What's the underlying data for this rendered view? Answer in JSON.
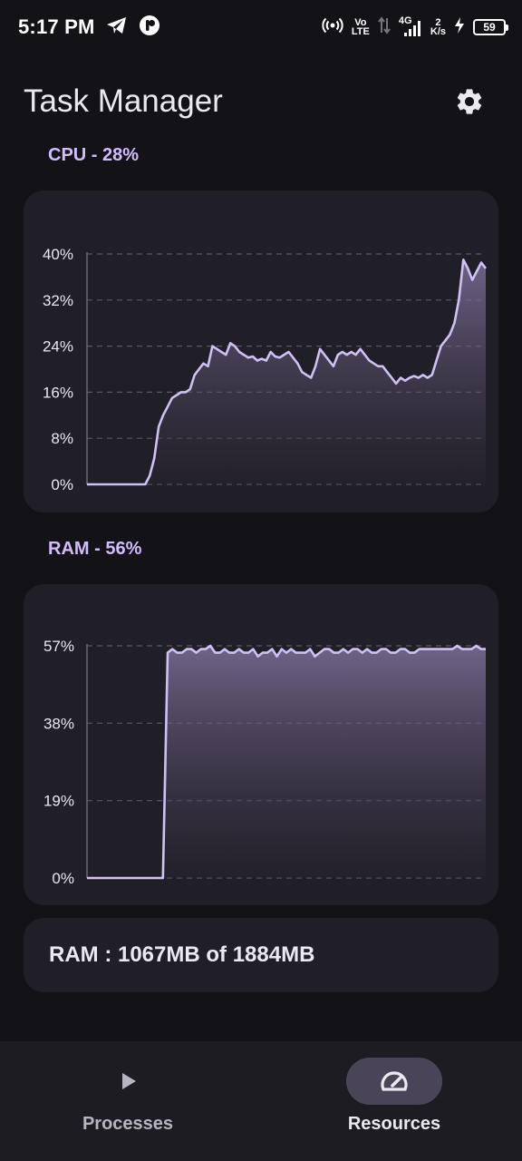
{
  "status_bar": {
    "time": "5:17 PM",
    "icons": [
      "telegram-icon",
      "notification-app-icon",
      "hotspot-icon",
      "volte-icon",
      "data-arrows-icon",
      "signal-4g-icon",
      "speed-indicator",
      "charging-icon",
      "battery-icon"
    ],
    "volte_line1": "Vo",
    "volte_line2": "LTE",
    "network_type": "4G",
    "speed_value": "2",
    "speed_unit": "K/s",
    "battery_level": "59"
  },
  "header": {
    "title": "Task Manager",
    "settings_icon": "gear-icon"
  },
  "cpu": {
    "label": "CPU - 28%"
  },
  "ram": {
    "label": "RAM - 56%",
    "summary": "RAM : 1067MB of 1884MB"
  },
  "colors": {
    "background": "#131217",
    "card": "#201e26",
    "accent_label": "#d2bcff",
    "line": "#cfc0f5",
    "nav_active_pill": "#4a4459"
  },
  "chart_data": [
    {
      "type": "area",
      "title": "CPU - 28%",
      "ylim": [
        0,
        40
      ],
      "yticks": [
        "0%",
        "8%",
        "16%",
        "24%",
        "32%",
        "40%"
      ],
      "ytick_values": [
        0,
        8,
        16,
        24,
        32,
        40
      ],
      "grid": true,
      "values": [
        0,
        0,
        0,
        0,
        0,
        0,
        0,
        0,
        0,
        0,
        0,
        0,
        0,
        0,
        1.5,
        4.5,
        10,
        12,
        13.5,
        15,
        15.5,
        16,
        16,
        16.5,
        19,
        20,
        21,
        20.5,
        24,
        23.5,
        23,
        22.5,
        24.5,
        24,
        23,
        22.5,
        22,
        22.2,
        21.5,
        21.8,
        21.5,
        23,
        22.2,
        22,
        22.5,
        23,
        22,
        21,
        19.5,
        19,
        18.5,
        20.5,
        23.5,
        22.5,
        21.5,
        20.5,
        22.5,
        23,
        22.5,
        23,
        22.5,
        23.5,
        22.5,
        21.5,
        21,
        20.5,
        20.5,
        19.5,
        18.5,
        17.5,
        18.5,
        18,
        18.5,
        18.8,
        18.5,
        19,
        18.5,
        19,
        21.5,
        24,
        25,
        26,
        28,
        32,
        39,
        37.5,
        35.5,
        37,
        38.5,
        37.5
      ]
    },
    {
      "type": "area",
      "title": "RAM - 56%",
      "ylim": [
        0,
        57
      ],
      "yticks": [
        "0%",
        "19%",
        "38%",
        "57%"
      ],
      "ytick_values": [
        0,
        19,
        38,
        57
      ],
      "grid": true,
      "values": [
        0,
        0,
        0,
        0,
        0,
        0,
        0,
        0,
        0,
        0,
        0,
        0,
        0,
        0,
        0,
        0,
        0,
        55.3,
        56.2,
        55.3,
        55.3,
        56.2,
        56.2,
        55.3,
        56.2,
        56.2,
        57,
        55.3,
        55.3,
        56.2,
        55.3,
        55.3,
        56.2,
        55.3,
        55.3,
        56.2,
        54.4,
        55.3,
        55.3,
        56.2,
        54.4,
        56.2,
        55.3,
        56.2,
        55.3,
        55.3,
        55.3,
        56.2,
        54.4,
        55.3,
        56.2,
        56.2,
        55.3,
        55.3,
        56.2,
        55.3,
        56.2,
        56.2,
        55.3,
        56.2,
        55.3,
        55.3,
        56.2,
        56.2,
        55.3,
        55.3,
        56.2,
        56.2,
        55.3,
        55.3,
        56.2,
        56.2,
        56.2,
        56.2,
        56.2,
        56.2,
        56.2,
        56.2,
        57,
        56.2,
        56.2,
        56.2,
        57,
        56.2,
        56.2
      ]
    }
  ],
  "bottom_nav": {
    "items": [
      {
        "label": "Processes",
        "icon": "play-icon",
        "active": false
      },
      {
        "label": "Resources",
        "icon": "speedometer-icon",
        "active": true
      }
    ]
  }
}
